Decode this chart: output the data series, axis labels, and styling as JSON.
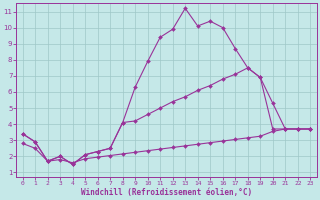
{
  "xlabel": "Windchill (Refroidissement éolien,°C)",
  "background_color": "#c5e8e8",
  "grid_color": "#9fc8c8",
  "line_color": "#993399",
  "xlim": [
    -0.5,
    23.5
  ],
  "ylim": [
    0.7,
    11.5
  ],
  "xticks": [
    0,
    1,
    2,
    3,
    4,
    5,
    6,
    7,
    8,
    9,
    10,
    11,
    12,
    13,
    14,
    15,
    16,
    17,
    18,
    19,
    20,
    21,
    22,
    23
  ],
  "yticks": [
    1,
    2,
    3,
    4,
    5,
    6,
    7,
    8,
    9,
    10,
    11
  ],
  "s1x": [
    0,
    1,
    2,
    3,
    4,
    5,
    6,
    7,
    8,
    9,
    10,
    11,
    12,
    13,
    14,
    15,
    16,
    17,
    18,
    19,
    20,
    21,
    22,
    23
  ],
  "s1y": [
    3.4,
    2.9,
    1.7,
    2.0,
    1.5,
    2.1,
    2.3,
    2.5,
    4.1,
    6.3,
    7.9,
    9.4,
    9.9,
    11.2,
    10.1,
    10.4,
    10.0,
    8.7,
    7.5,
    6.9,
    5.3,
    3.7,
    3.7,
    3.7
  ],
  "s2x": [
    0,
    1,
    2,
    3,
    4,
    5,
    6,
    7,
    8,
    9,
    10,
    11,
    12,
    13,
    14,
    15,
    16,
    17,
    18,
    19,
    20,
    21,
    22,
    23
  ],
  "s2y": [
    3.4,
    2.9,
    1.7,
    2.0,
    1.5,
    2.1,
    2.3,
    2.5,
    4.1,
    4.2,
    4.6,
    5.0,
    5.4,
    5.7,
    6.1,
    6.4,
    6.8,
    7.1,
    7.5,
    6.9,
    3.7,
    3.7,
    3.7,
    3.7
  ],
  "s3x": [
    0,
    1,
    2,
    3,
    4,
    5,
    6,
    7,
    8,
    9,
    10,
    11,
    12,
    13,
    14,
    15,
    16,
    17,
    18,
    19,
    20,
    21,
    22,
    23
  ],
  "s3y": [
    2.8,
    2.5,
    1.7,
    1.8,
    1.6,
    1.85,
    1.95,
    2.05,
    2.15,
    2.25,
    2.35,
    2.45,
    2.55,
    2.65,
    2.75,
    2.85,
    2.95,
    3.05,
    3.15,
    3.25,
    3.55,
    3.7,
    3.7,
    3.7
  ]
}
